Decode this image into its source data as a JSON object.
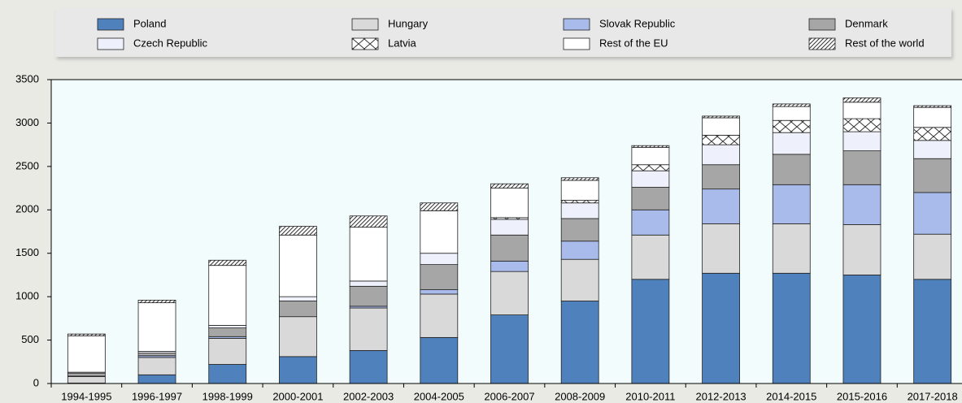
{
  "chart_data": {
    "type": "stacked_bar",
    "categories": [
      "1994-1995",
      "1996-1997",
      "1998-1999",
      "2000-2001",
      "2002-2003",
      "2004-2005",
      "2006-2007",
      "2008-2009",
      "2010-2011",
      "2012-2013",
      "2014-2015",
      "2015-2016",
      "2017-2018"
    ],
    "series": [
      {
        "name": "Poland",
        "color": "#4f81bd",
        "values": [
          5,
          100,
          220,
          310,
          380,
          530,
          790,
          950,
          1200,
          1270,
          1270,
          1250,
          1200
        ]
      },
      {
        "name": "Hungary",
        "color": "#d9d9d9",
        "values": [
          75,
          200,
          300,
          460,
          490,
          500,
          500,
          480,
          510,
          570,
          570,
          580,
          520
        ]
      },
      {
        "name": "Slovak Republic",
        "color": "#a9bbea",
        "values": [
          5,
          20,
          20,
          0,
          20,
          50,
          120,
          210,
          290,
          400,
          450,
          460,
          480
        ]
      },
      {
        "name": "Denmark",
        "color": "#a6a6a6",
        "values": [
          35,
          30,
          100,
          180,
          230,
          290,
          300,
          260,
          260,
          280,
          350,
          390,
          390
        ]
      },
      {
        "name": "Czech Republic",
        "color": "#eef1fb",
        "values": [
          10,
          20,
          30,
          50,
          60,
          130,
          180,
          180,
          190,
          230,
          250,
          220,
          210
        ]
      },
      {
        "name": "Latvia",
        "color": "#ffffff",
        "pattern": "cross",
        "values": [
          0,
          0,
          0,
          0,
          0,
          0,
          20,
          30,
          70,
          110,
          140,
          150,
          150
        ]
      },
      {
        "name": "Rest of the EU",
        "color": "#ffffff",
        "values": [
          420,
          560,
          690,
          710,
          620,
          490,
          340,
          230,
          200,
          200,
          160,
          190,
          230
        ]
      },
      {
        "name": "Rest of the world",
        "color": "#ffffff",
        "pattern": "hatch",
        "values": [
          20,
          30,
          60,
          100,
          130,
          90,
          50,
          30,
          20,
          20,
          30,
          50,
          20
        ]
      }
    ],
    "ylim": [
      0,
      3500
    ],
    "yticks": [
      0,
      500,
      1000,
      1500,
      2000,
      2500,
      3000,
      3500
    ],
    "grid": false
  }
}
